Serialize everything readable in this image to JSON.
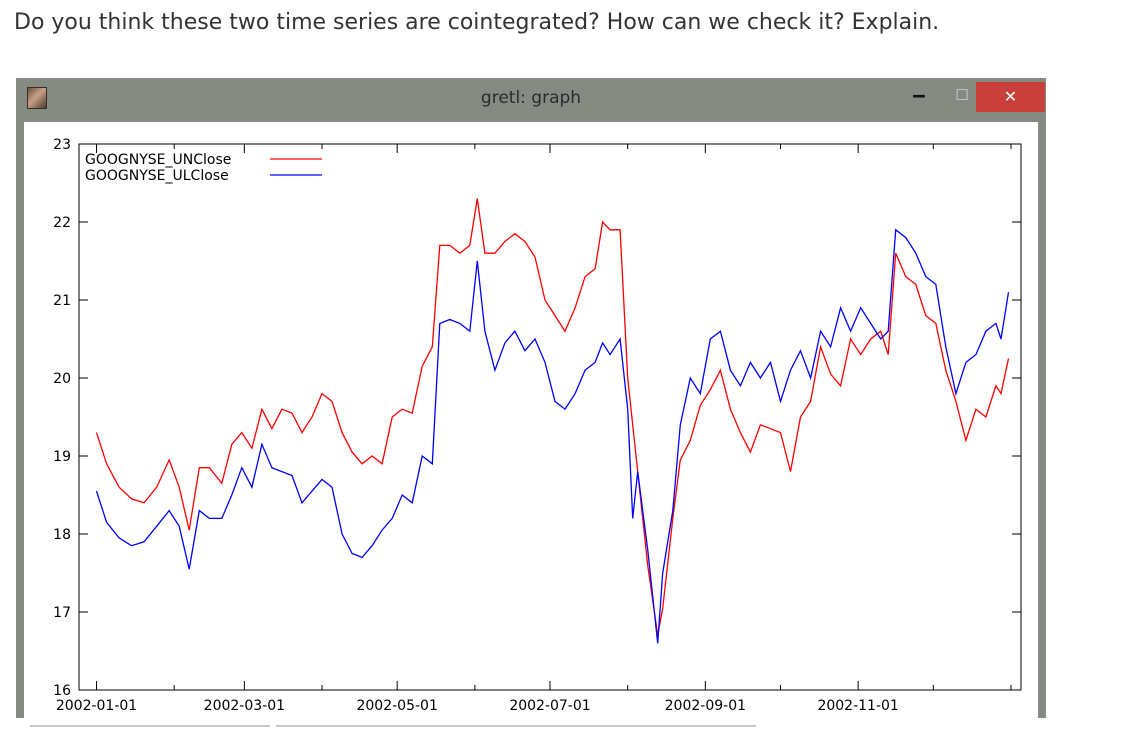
{
  "question": "Do you think these two time series are cointegrated? How can we check it? Explain.",
  "window": {
    "title": "gretl: graph",
    "icon": "app-icon",
    "minimize_label": "‒",
    "maximize_label": "☐",
    "close_label": "✕"
  },
  "colors": {
    "titlebar": "#858b82",
    "close": "#c9403b",
    "series_unclose": "#ff0000",
    "series_ulclose": "#0000ff"
  },
  "chart_data": {
    "type": "line",
    "title": "",
    "xlabel": "",
    "ylabel": "",
    "ylim": [
      16,
      23
    ],
    "yticks": [
      "16",
      "17",
      "18",
      "19",
      "20",
      "21",
      "22",
      "23"
    ],
    "xticks": [
      "2002-01-01",
      "2002-03-01",
      "2002-05-01",
      "2002-07-01",
      "2002-09-01",
      "2002-11-01"
    ],
    "xlim": [
      "2001-12-25",
      "2003-01-05"
    ],
    "grid": false,
    "legend_position": "top-left",
    "series": [
      {
        "name": "GOOGNYSE_UNClose",
        "color": "#ff0000",
        "points": [
          [
            "2002-01-01",
            19.3
          ],
          [
            "2002-01-05",
            18.9
          ],
          [
            "2002-01-10",
            18.6
          ],
          [
            "2002-01-15",
            18.45
          ],
          [
            "2002-01-20",
            18.4
          ],
          [
            "2002-01-25",
            18.6
          ],
          [
            "2002-01-30",
            18.95
          ],
          [
            "2002-02-03",
            18.6
          ],
          [
            "2002-02-07",
            18.05
          ],
          [
            "2002-02-11",
            18.85
          ],
          [
            "2002-02-15",
            18.85
          ],
          [
            "2002-02-20",
            18.65
          ],
          [
            "2002-02-24",
            19.15
          ],
          [
            "2002-02-28",
            19.3
          ],
          [
            "2002-03-04",
            19.1
          ],
          [
            "2002-03-08",
            19.6
          ],
          [
            "2002-03-12",
            19.35
          ],
          [
            "2002-03-16",
            19.6
          ],
          [
            "2002-03-20",
            19.55
          ],
          [
            "2002-03-24",
            19.3
          ],
          [
            "2002-03-28",
            19.5
          ],
          [
            "2002-04-01",
            19.8
          ],
          [
            "2002-04-05",
            19.7
          ],
          [
            "2002-04-09",
            19.3
          ],
          [
            "2002-04-13",
            19.05
          ],
          [
            "2002-04-17",
            18.9
          ],
          [
            "2002-04-21",
            19.0
          ],
          [
            "2002-04-25",
            18.9
          ],
          [
            "2002-04-29",
            19.5
          ],
          [
            "2002-05-03",
            19.6
          ],
          [
            "2002-05-07",
            19.55
          ],
          [
            "2002-05-11",
            20.15
          ],
          [
            "2002-05-15",
            20.4
          ],
          [
            "2002-05-18",
            21.7
          ],
          [
            "2002-05-22",
            21.7
          ],
          [
            "2002-05-26",
            21.6
          ],
          [
            "2002-05-30",
            21.7
          ],
          [
            "2002-06-02",
            22.3
          ],
          [
            "2002-06-05",
            21.6
          ],
          [
            "2002-06-09",
            21.6
          ],
          [
            "2002-06-13",
            21.75
          ],
          [
            "2002-06-17",
            21.85
          ],
          [
            "2002-06-21",
            21.75
          ],
          [
            "2002-06-25",
            21.55
          ],
          [
            "2002-06-29",
            21.0
          ],
          [
            "2002-07-03",
            20.8
          ],
          [
            "2002-07-07",
            20.6
          ],
          [
            "2002-07-11",
            20.9
          ],
          [
            "2002-07-15",
            21.3
          ],
          [
            "2002-07-19",
            21.4
          ],
          [
            "2002-07-22",
            22.0
          ],
          [
            "2002-07-25",
            21.9
          ],
          [
            "2002-07-29",
            21.9
          ],
          [
            "2002-08-01",
            20.0
          ],
          [
            "2002-08-05",
            18.8
          ],
          [
            "2002-08-09",
            17.6
          ],
          [
            "2002-08-13",
            16.7
          ],
          [
            "2002-08-15",
            17.05
          ],
          [
            "2002-08-19",
            18.2
          ],
          [
            "2002-08-22",
            18.95
          ],
          [
            "2002-08-26",
            19.2
          ],
          [
            "2002-08-30",
            19.65
          ],
          [
            "2002-09-03",
            19.85
          ],
          [
            "2002-09-07",
            20.1
          ],
          [
            "2002-09-11",
            19.6
          ],
          [
            "2002-09-15",
            19.3
          ],
          [
            "2002-09-19",
            19.05
          ],
          [
            "2002-09-23",
            19.4
          ],
          [
            "2002-09-27",
            19.35
          ],
          [
            "2002-10-01",
            19.3
          ],
          [
            "2002-10-05",
            18.8
          ],
          [
            "2002-10-09",
            19.5
          ],
          [
            "2002-10-13",
            19.7
          ],
          [
            "2002-10-17",
            20.4
          ],
          [
            "2002-10-21",
            20.05
          ],
          [
            "2002-10-25",
            19.9
          ],
          [
            "2002-10-29",
            20.5
          ],
          [
            "2002-11-02",
            20.3
          ],
          [
            "2002-11-06",
            20.5
          ],
          [
            "2002-11-10",
            20.6
          ],
          [
            "2002-11-13",
            20.3
          ],
          [
            "2002-11-16",
            21.6
          ],
          [
            "2002-11-20",
            21.3
          ],
          [
            "2002-11-24",
            21.2
          ],
          [
            "2002-11-28",
            20.8
          ],
          [
            "2002-12-02",
            20.7
          ],
          [
            "2002-12-06",
            20.1
          ],
          [
            "2002-12-10",
            19.7
          ],
          [
            "2002-12-14",
            19.2
          ],
          [
            "2002-12-18",
            19.6
          ],
          [
            "2002-12-22",
            19.5
          ],
          [
            "2002-12-26",
            19.9
          ],
          [
            "2002-12-28",
            19.8
          ],
          [
            "2002-12-31",
            20.25
          ]
        ]
      },
      {
        "name": "GOOGNYSE_ULClose",
        "color": "#0000ff",
        "points": [
          [
            "2002-01-01",
            18.55
          ],
          [
            "2002-01-05",
            18.15
          ],
          [
            "2002-01-10",
            17.95
          ],
          [
            "2002-01-15",
            17.85
          ],
          [
            "2002-01-20",
            17.9
          ],
          [
            "2002-01-25",
            18.1
          ],
          [
            "2002-01-30",
            18.3
          ],
          [
            "2002-02-03",
            18.1
          ],
          [
            "2002-02-07",
            17.55
          ],
          [
            "2002-02-11",
            18.3
          ],
          [
            "2002-02-15",
            18.2
          ],
          [
            "2002-02-20",
            18.2
          ],
          [
            "2002-02-24",
            18.5
          ],
          [
            "2002-02-28",
            18.85
          ],
          [
            "2002-03-04",
            18.6
          ],
          [
            "2002-03-08",
            19.15
          ],
          [
            "2002-03-12",
            18.85
          ],
          [
            "2002-03-16",
            18.8
          ],
          [
            "2002-03-20",
            18.75
          ],
          [
            "2002-03-24",
            18.4
          ],
          [
            "2002-03-28",
            18.55
          ],
          [
            "2002-04-01",
            18.7
          ],
          [
            "2002-04-05",
            18.6
          ],
          [
            "2002-04-09",
            18.0
          ],
          [
            "2002-04-13",
            17.75
          ],
          [
            "2002-04-17",
            17.7
          ],
          [
            "2002-04-21",
            17.85
          ],
          [
            "2002-04-25",
            18.05
          ],
          [
            "2002-04-29",
            18.2
          ],
          [
            "2002-05-03",
            18.5
          ],
          [
            "2002-05-07",
            18.4
          ],
          [
            "2002-05-11",
            19.0
          ],
          [
            "2002-05-15",
            18.9
          ],
          [
            "2002-05-18",
            20.7
          ],
          [
            "2002-05-22",
            20.75
          ],
          [
            "2002-05-26",
            20.7
          ],
          [
            "2002-05-30",
            20.6
          ],
          [
            "2002-06-02",
            21.5
          ],
          [
            "2002-06-05",
            20.6
          ],
          [
            "2002-06-09",
            20.1
          ],
          [
            "2002-06-13",
            20.45
          ],
          [
            "2002-06-17",
            20.6
          ],
          [
            "2002-06-21",
            20.35
          ],
          [
            "2002-06-25",
            20.5
          ],
          [
            "2002-06-29",
            20.2
          ],
          [
            "2002-07-03",
            19.7
          ],
          [
            "2002-07-07",
            19.6
          ],
          [
            "2002-07-11",
            19.8
          ],
          [
            "2002-07-15",
            20.1
          ],
          [
            "2002-07-19",
            20.2
          ],
          [
            "2002-07-22",
            20.45
          ],
          [
            "2002-07-25",
            20.3
          ],
          [
            "2002-07-29",
            20.5
          ],
          [
            "2002-08-01",
            19.6
          ],
          [
            "2002-08-03",
            18.2
          ],
          [
            "2002-08-05",
            18.8
          ],
          [
            "2002-08-09",
            17.8
          ],
          [
            "2002-08-13",
            16.6
          ],
          [
            "2002-08-15",
            17.5
          ],
          [
            "2002-08-19",
            18.3
          ],
          [
            "2002-08-22",
            19.4
          ],
          [
            "2002-08-26",
            20.0
          ],
          [
            "2002-08-30",
            19.8
          ],
          [
            "2002-09-03",
            20.5
          ],
          [
            "2002-09-07",
            20.6
          ],
          [
            "2002-09-11",
            20.1
          ],
          [
            "2002-09-15",
            19.9
          ],
          [
            "2002-09-19",
            20.2
          ],
          [
            "2002-09-23",
            20.0
          ],
          [
            "2002-09-27",
            20.2
          ],
          [
            "2002-10-01",
            19.7
          ],
          [
            "2002-10-05",
            20.1
          ],
          [
            "2002-10-09",
            20.35
          ],
          [
            "2002-10-13",
            20.0
          ],
          [
            "2002-10-17",
            20.6
          ],
          [
            "2002-10-21",
            20.4
          ],
          [
            "2002-10-25",
            20.9
          ],
          [
            "2002-10-29",
            20.6
          ],
          [
            "2002-11-02",
            20.9
          ],
          [
            "2002-11-06",
            20.7
          ],
          [
            "2002-11-10",
            20.5
          ],
          [
            "2002-11-13",
            20.6
          ],
          [
            "2002-11-16",
            21.9
          ],
          [
            "2002-11-20",
            21.8
          ],
          [
            "2002-11-24",
            21.6
          ],
          [
            "2002-11-28",
            21.3
          ],
          [
            "2002-12-02",
            21.2
          ],
          [
            "2002-12-06",
            20.4
          ],
          [
            "2002-12-10",
            19.8
          ],
          [
            "2002-12-14",
            20.2
          ],
          [
            "2002-12-18",
            20.3
          ],
          [
            "2002-12-22",
            20.6
          ],
          [
            "2002-12-26",
            20.7
          ],
          [
            "2002-12-28",
            20.5
          ],
          [
            "2002-12-31",
            21.1
          ]
        ]
      }
    ]
  }
}
